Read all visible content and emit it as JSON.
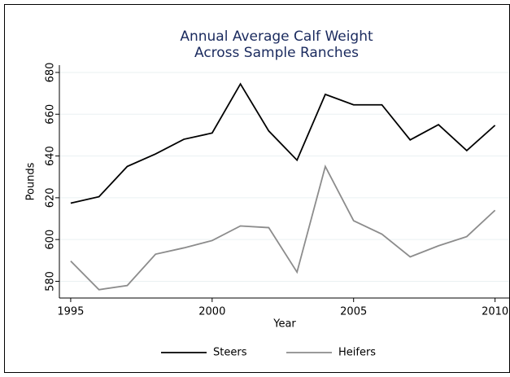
{
  "chart_data": {
    "type": "line",
    "title": [
      "Annual Average Calf Weight",
      "Across Sample Ranches"
    ],
    "x_label": "Year",
    "y_label": "Pounds",
    "x": [
      1995,
      1996,
      1997,
      1998,
      1999,
      2000,
      2001,
      2002,
      2003,
      2004,
      2005,
      2006,
      2007,
      2008,
      2009,
      2010
    ],
    "series": [
      {
        "name": "Steers",
        "color": "#000000",
        "values": [
          617.4,
          620.5,
          635,
          641,
          648,
          651,
          674.5,
          652,
          638,
          669.5,
          664.5,
          664.5,
          647.7,
          655,
          642.6,
          654.7
        ]
      },
      {
        "name": "Heifers",
        "color": "#8c8c8c",
        "values": [
          589.7,
          576,
          578,
          593,
          596,
          599.5,
          606.5,
          605.7,
          584.4,
          635,
          609,
          602.6,
          591.7,
          597,
          601.4,
          614
        ]
      }
    ],
    "xlim": [
      1994.6,
      2010.5
    ],
    "xticks": [
      1995,
      2000,
      2005,
      2010
    ],
    "ylim": [
      572,
      683.5
    ],
    "yticks": [
      580,
      600,
      620,
      640,
      660,
      680
    ],
    "grid": true,
    "legend": "bottom"
  }
}
